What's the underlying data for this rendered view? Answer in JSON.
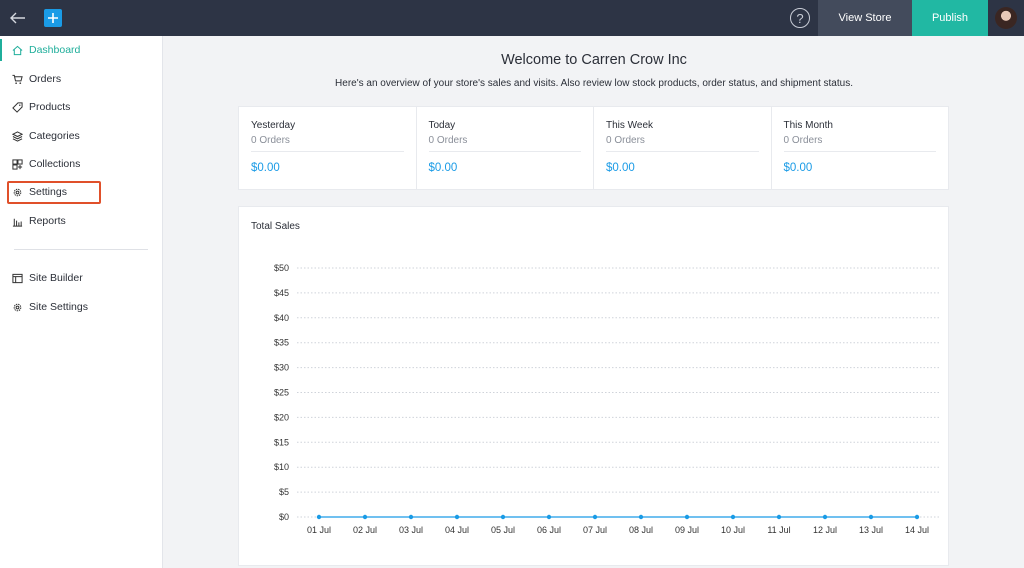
{
  "topbar": {
    "view_store": "View Store",
    "publish": "Publish",
    "help": "?"
  },
  "sidebar": {
    "items": [
      {
        "label": "Dashboard",
        "icon": "home-icon"
      },
      {
        "label": "Orders",
        "icon": "cart-icon"
      },
      {
        "label": "Products",
        "icon": "tag-icon"
      },
      {
        "label": "Categories",
        "icon": "layers-icon"
      },
      {
        "label": "Collections",
        "icon": "collections-icon"
      },
      {
        "label": "Settings",
        "icon": "gear-icon"
      },
      {
        "label": "Reports",
        "icon": "bar-chart-icon"
      }
    ],
    "secondary": [
      {
        "label": "Site Builder",
        "icon": "site-builder-icon"
      },
      {
        "label": "Site Settings",
        "icon": "gear-icon"
      }
    ]
  },
  "main": {
    "title": "Welcome to Carren Crow Inc",
    "subtitle": "Here's an overview of your store's sales and visits. Also review low stock products, order status, and shipment status.",
    "stats": [
      {
        "label": "Yesterday",
        "orders": "0 Orders",
        "amount": "$0.00"
      },
      {
        "label": "Today",
        "orders": "0 Orders",
        "amount": "$0.00"
      },
      {
        "label": "This Week",
        "orders": "0 Orders",
        "amount": "$0.00"
      },
      {
        "label": "This Month",
        "orders": "0 Orders",
        "amount": "$0.00"
      }
    ]
  },
  "chart_data": {
    "type": "line",
    "title": "Total Sales",
    "categories": [
      "01 Jul",
      "02 Jul",
      "03 Jul",
      "04 Jul",
      "05 Jul",
      "06 Jul",
      "07 Jul",
      "08 Jul",
      "09 Jul",
      "10 Jul",
      "11 Jul",
      "12 Jul",
      "13 Jul",
      "14 Jul"
    ],
    "values": [
      0,
      0,
      0,
      0,
      0,
      0,
      0,
      0,
      0,
      0,
      0,
      0,
      0,
      0
    ],
    "yticks": [
      "$0",
      "$5",
      "$10",
      "$15",
      "$20",
      "$25",
      "$30",
      "$35",
      "$40",
      "$45",
      "$50"
    ],
    "ylim": [
      0,
      50
    ],
    "grid": true,
    "color": "#1a9be6"
  }
}
